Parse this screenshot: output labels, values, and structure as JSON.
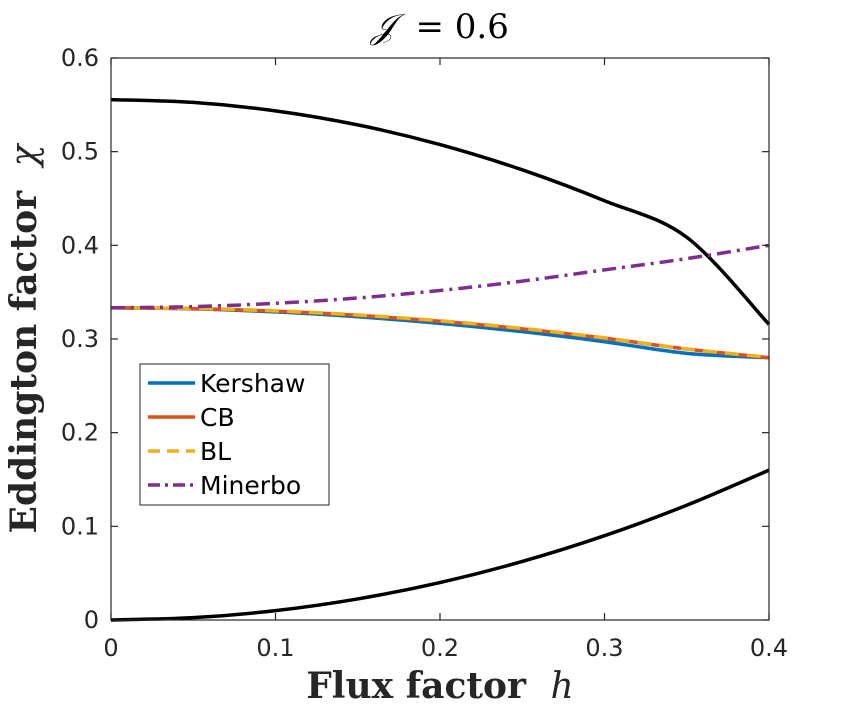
{
  "chart_data": {
    "type": "line",
    "title_lhs": "𝒥",
    "title_rhs": "= 0.6",
    "xlabel_text": "Flux factor",
    "xlabel_var": "h",
    "ylabel_text": "Eddington factor",
    "ylabel_var": "χ",
    "xlim": [
      0,
      0.4
    ],
    "ylim": [
      0,
      0.6
    ],
    "xticks": [
      0,
      0.1,
      0.2,
      0.3,
      0.4
    ],
    "xtick_labels": [
      "0",
      "0.1",
      "0.2",
      "0.3",
      "0.4"
    ],
    "yticks": [
      0,
      0.1,
      0.2,
      0.3,
      0.4,
      0.5,
      0.6
    ],
    "ytick_labels": [
      "0",
      "0.1",
      "0.2",
      "0.3",
      "0.4",
      "0.5",
      "0.6"
    ],
    "x": [
      0,
      0.05,
      0.1,
      0.15,
      0.2,
      0.25,
      0.3,
      0.35,
      0.4
    ],
    "series": [
      {
        "name": "Kershaw",
        "color": "#0072BD",
        "dash": "solid",
        "values": [
          0.3333,
          0.3322,
          0.3289,
          0.3237,
          0.3167,
          0.3078,
          0.2971,
          0.2847,
          0.28
        ]
      },
      {
        "name": "CB",
        "color": "#D95319",
        "dash": "solid",
        "values": [
          0.3333,
          0.3324,
          0.3297,
          0.3252,
          0.3189,
          0.3108,
          0.3009,
          0.2893,
          0.28
        ]
      },
      {
        "name": "BL",
        "color": "#EDB120",
        "dash": "dashed",
        "values": [
          0.3333,
          0.3326,
          0.3301,
          0.3257,
          0.3195,
          0.3113,
          0.3013,
          0.2894,
          0.2805
        ]
      },
      {
        "name": "Minerbo",
        "color": "#7E2F8E",
        "dash": "dashdot",
        "values": [
          0.3333,
          0.3346,
          0.3381,
          0.3438,
          0.3518,
          0.3618,
          0.3738,
          0.3858,
          0.4
        ]
      }
    ],
    "bounds": [
      {
        "name": "upper-bound",
        "color": "#000000",
        "values": [
          0.5556,
          0.5526,
          0.5436,
          0.5286,
          0.5076,
          0.4806,
          0.4476,
          0.4086,
          0.3156
        ]
      },
      {
        "name": "lower-bound",
        "color": "#000000",
        "values": [
          0.0,
          0.0025,
          0.01,
          0.0225,
          0.04,
          0.0625,
          0.09,
          0.1225,
          0.16
        ]
      }
    ],
    "legend_location": "center-left",
    "grid": false
  }
}
